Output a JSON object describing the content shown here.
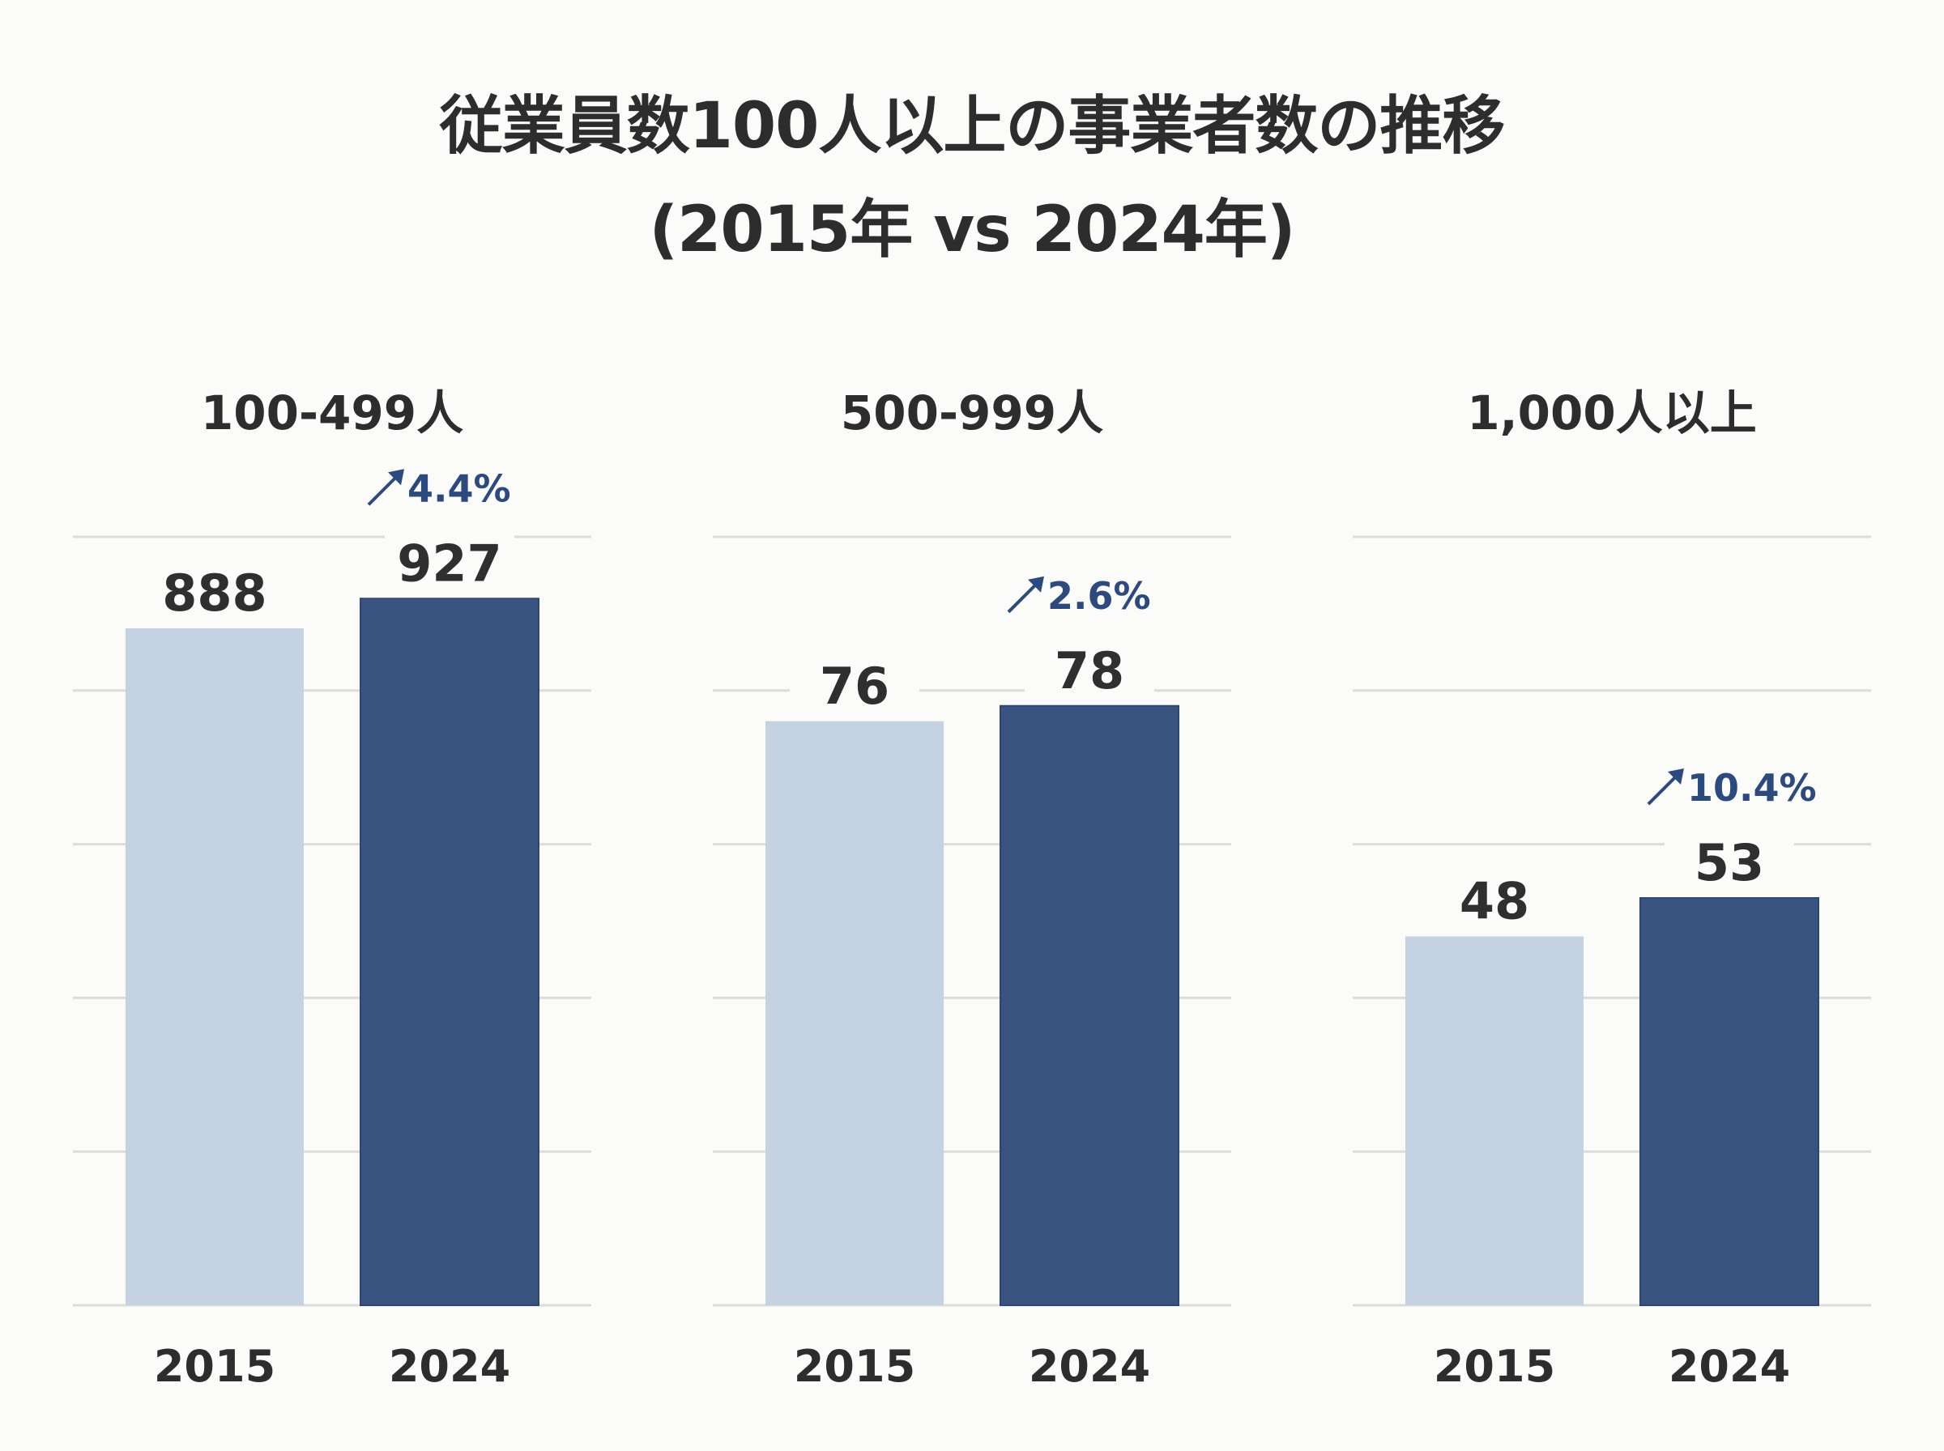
{
  "chart_data": [
    {
      "type": "bar",
      "title": "100-499人",
      "categories": [
        "2015",
        "2024"
      ],
      "values": [
        888,
        927
      ],
      "value_labels": [
        "888",
        "927"
      ],
      "change_label": "4.4%",
      "change_icon": "arrow-up-right-icon",
      "ylim": [
        0,
        1008
      ],
      "grid": true,
      "gridline_count": 5
    },
    {
      "type": "bar",
      "title": "500-999人",
      "categories": [
        "2015",
        "2024"
      ],
      "values": [
        76,
        78
      ],
      "value_labels": [
        "76",
        "78"
      ],
      "change_label": "2.6%",
      "change_icon": "arrow-up-right-icon",
      "ylim": [
        0,
        100
      ],
      "grid": true,
      "gridline_count": 5
    },
    {
      "type": "bar",
      "title": "1,000人以上",
      "categories": [
        "2015",
        "2024"
      ],
      "values": [
        48,
        53
      ],
      "value_labels": [
        "48",
        "53"
      ],
      "change_label": "10.4%",
      "change_icon": "arrow-up-right-icon",
      "ylim": [
        0,
        100
      ],
      "grid": true,
      "gridline_count": 5
    }
  ],
  "title": {
    "line1": "従業員数100人以上の事業者数の推移",
    "line2": "(2015年 vs 2024年)"
  },
  "colors": {
    "bar_2015": "#c5d2e2",
    "bar_2024": "#3a5482",
    "change_text": "#2c4a7e",
    "text": "#2d2d2d",
    "grid": "#dcdcda"
  },
  "arrow_glyph": "↗"
}
